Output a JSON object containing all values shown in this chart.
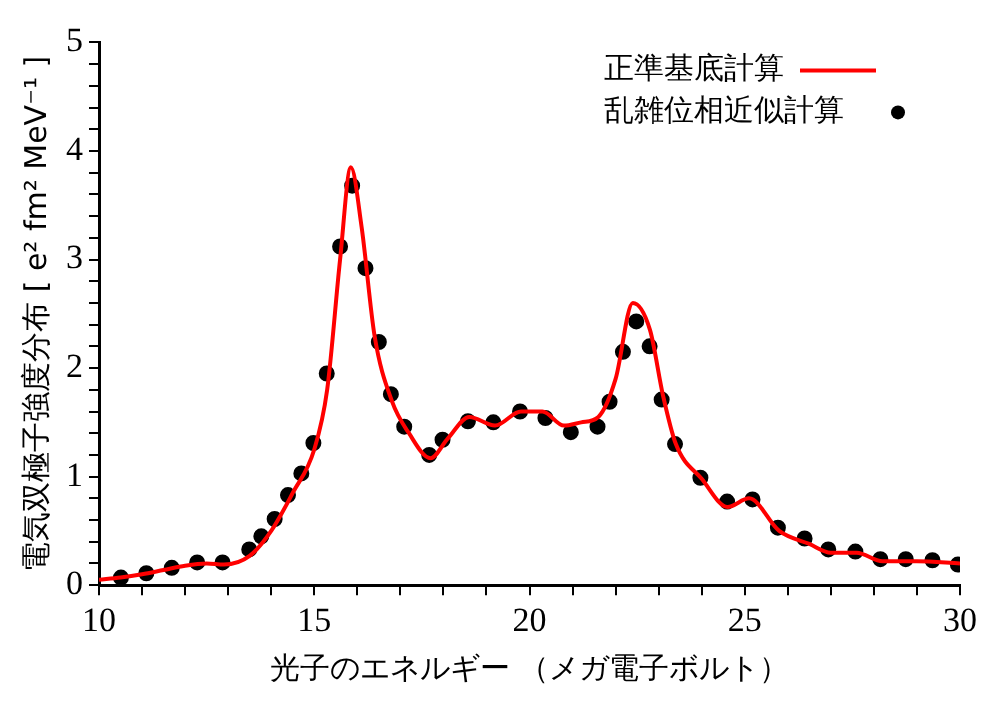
{
  "chart_data": {
    "type": "line",
    "xlabel": "光子のエネルギー （メガ電子ボルト）",
    "ylabel": "電気双極子強度分布 [ e² fm² MeV⁻¹ ]",
    "xlim": [
      10,
      30
    ],
    "ylim": [
      0,
      5
    ],
    "xticks": [
      10,
      {
        "value": 11,
        "label": null
      },
      {
        "value": 12,
        "label": null
      },
      {
        "value": 13,
        "label": null
      },
      {
        "value": 14,
        "label": null
      },
      15,
      {
        "value": 16,
        "label": null
      },
      {
        "value": 17,
        "label": null
      },
      {
        "value": 18,
        "label": null
      },
      {
        "value": 19,
        "label": null
      },
      20,
      {
        "value": 21,
        "label": null
      },
      {
        "value": 22,
        "label": null
      },
      {
        "value": 23,
        "label": null
      },
      {
        "value": 24,
        "label": null
      },
      25,
      {
        "value": 26,
        "label": null
      },
      {
        "value": 27,
        "label": null
      },
      {
        "value": 28,
        "label": null
      },
      {
        "value": 29,
        "label": null
      },
      30
    ],
    "yticks": [
      0,
      {
        "value": 0.2,
        "label": null
      },
      {
        "value": 0.4,
        "label": null
      },
      {
        "value": 0.6,
        "label": null
      },
      {
        "value": 0.8,
        "label": null
      },
      1,
      {
        "value": 1.2,
        "label": null
      },
      {
        "value": 1.4,
        "label": null
      },
      {
        "value": 1.6,
        "label": null
      },
      {
        "value": 1.8,
        "label": null
      },
      2,
      {
        "value": 2.2,
        "label": null
      },
      {
        "value": 2.4,
        "label": null
      },
      {
        "value": 2.6,
        "label": null
      },
      {
        "value": 2.8,
        "label": null
      },
      3,
      {
        "value": 3.2,
        "label": null
      },
      {
        "value": 3.4,
        "label": null
      },
      {
        "value": 3.6,
        "label": null
      },
      {
        "value": 3.8,
        "label": null
      },
      4,
      {
        "value": 4.2,
        "label": null
      },
      {
        "value": 4.4,
        "label": null
      },
      {
        "value": 4.6,
        "label": null
      },
      {
        "value": 4.8,
        "label": null
      },
      5
    ],
    "grid": false,
    "legend": "top right",
    "series": [
      {
        "name": "正準基底計算",
        "type": "line",
        "color": "#ff0000",
        "marker": "none",
        "line_style": "solid",
        "x": [
          10,
          10.5,
          11,
          11.5,
          12,
          12.5,
          12.9,
          13.5,
          14,
          14.5,
          15,
          15.3,
          15.6,
          15.85,
          16.1,
          16.4,
          16.8,
          17.2,
          17.7,
          18.1,
          18.6,
          19.2,
          19.8,
          20.3,
          20.8,
          21.2,
          21.6,
          22,
          22.4,
          22.8,
          23.1,
          23.4,
          24,
          24.6,
          25.1,
          25.8,
          26.5,
          27,
          27.6,
          28.2,
          29,
          30
        ],
        "values": [
          0.05,
          0.07,
          0.1,
          0.14,
          0.18,
          0.2,
          0.19,
          0.27,
          0.5,
          0.85,
          1.25,
          1.8,
          3.0,
          3.85,
          3.3,
          2.3,
          1.7,
          1.4,
          1.17,
          1.35,
          1.55,
          1.47,
          1.6,
          1.6,
          1.47,
          1.5,
          1.55,
          1.9,
          2.6,
          2.35,
          1.75,
          1.3,
          0.98,
          0.72,
          0.8,
          0.5,
          0.38,
          0.3,
          0.3,
          0.22,
          0.22,
          0.2
        ]
      },
      {
        "name": "乱雑位相近似計算",
        "type": "scatter",
        "color": "#000000",
        "marker": "circle",
        "x": [
          10.51,
          11.1,
          11.69,
          12.28,
          12.87,
          13.49,
          13.77,
          14.08,
          14.39,
          14.7,
          14.98,
          15.29,
          15.6,
          15.88,
          16.19,
          16.5,
          16.78,
          17.09,
          17.67,
          17.98,
          18.57,
          19.16,
          19.78,
          20.37,
          20.96,
          21.58,
          21.86,
          22.17,
          22.48,
          22.79,
          23.07,
          23.38,
          23.97,
          24.59,
          25.18,
          25.77,
          26.39,
          26.94,
          27.57,
          28.15,
          28.74,
          29.36,
          29.95
        ],
        "values": [
          0.07,
          0.11,
          0.16,
          0.21,
          0.21,
          0.33,
          0.45,
          0.61,
          0.83,
          1.03,
          1.31,
          1.95,
          3.12,
          3.68,
          2.92,
          2.24,
          1.76,
          1.46,
          1.2,
          1.34,
          1.51,
          1.5,
          1.6,
          1.54,
          1.41,
          1.46,
          1.69,
          2.15,
          2.43,
          2.2,
          1.71,
          1.3,
          0.99,
          0.77,
          0.79,
          0.53,
          0.43,
          0.33,
          0.31,
          0.24,
          0.24,
          0.23,
          0.19
        ]
      }
    ]
  }
}
